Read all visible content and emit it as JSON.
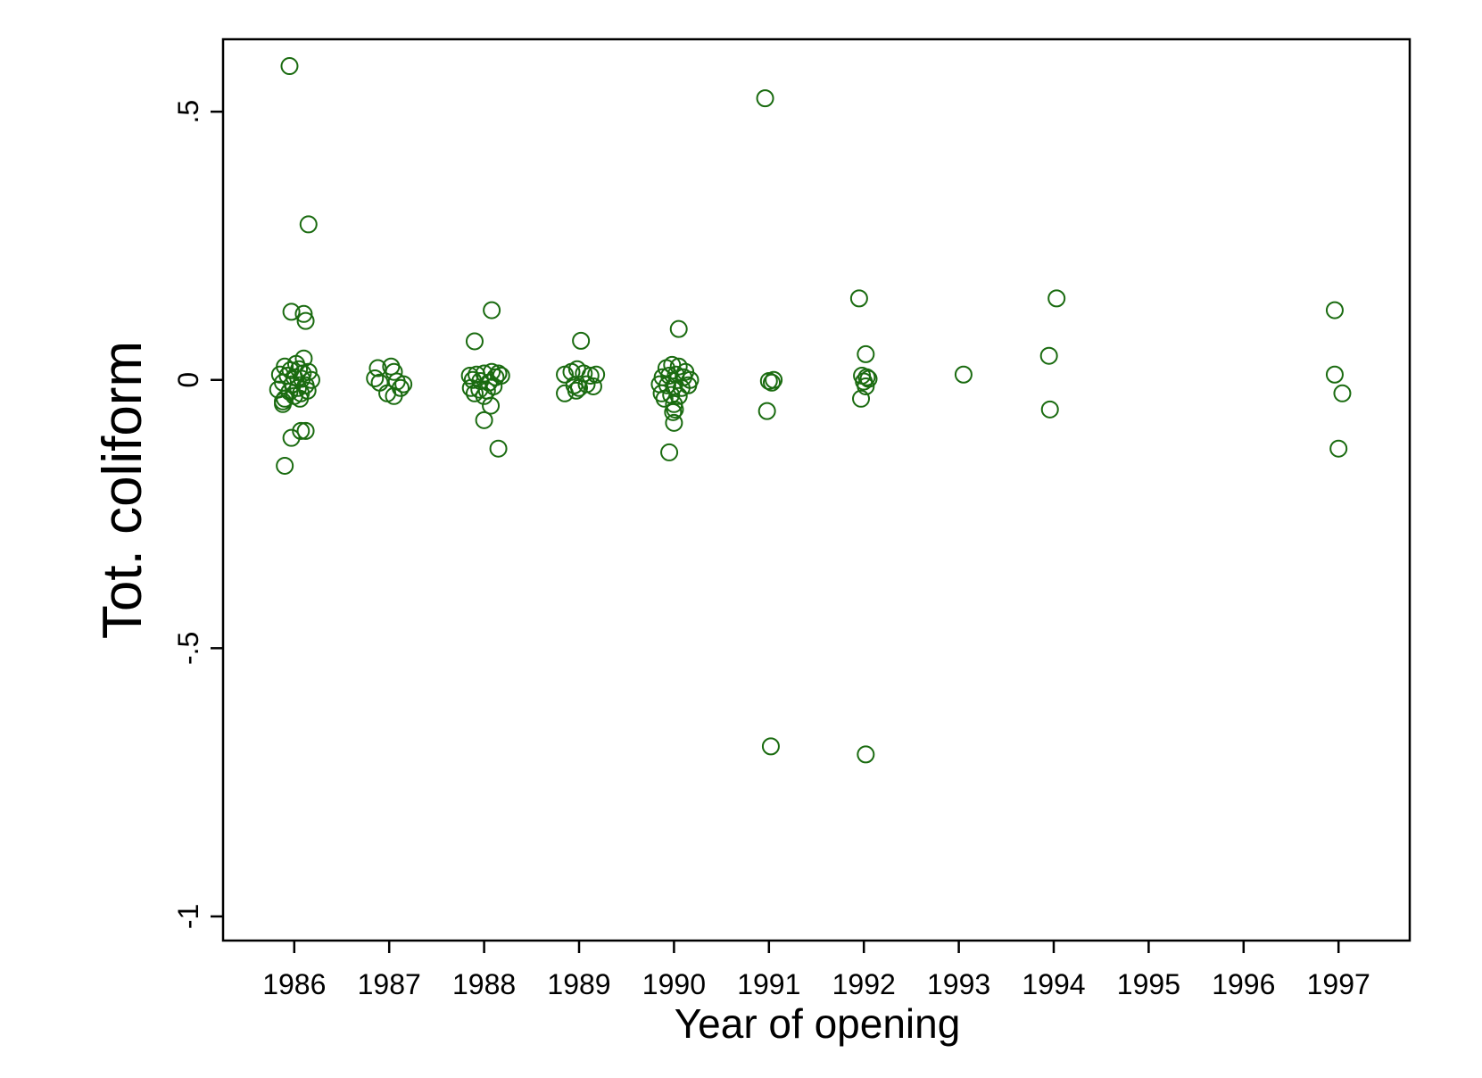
{
  "chart_data": {
    "type": "scatter",
    "title": "",
    "xlabel": "Year of opening",
    "ylabel": "Tot. coliform",
    "xlim": [
      1985.25,
      1997.75
    ],
    "ylim": [
      -1.045,
      0.635
    ],
    "x_ticks": [
      1986,
      1987,
      1988,
      1989,
      1990,
      1991,
      1992,
      1993,
      1994,
      1995,
      1996,
      1997
    ],
    "x_tick_labels": [
      "1986",
      "1987",
      "1988",
      "1989",
      "1990",
      "1991",
      "1992",
      "1993",
      "1994",
      "1995",
      "1996",
      "1997"
    ],
    "y_ticks": [
      -1,
      -0.5,
      0,
      0.5
    ],
    "y_tick_labels": [
      "-1",
      "-.5",
      "0",
      ".5"
    ],
    "grid": false,
    "legend": "none",
    "marker": "hollow-circle",
    "marker_color": "#1a6b10",
    "series": [
      {
        "points": [
          {
            "x": 1985.95,
            "y": 0.585
          },
          {
            "x": 1986.15,
            "y": 0.29
          },
          {
            "x": 1985.97,
            "y": 0.127
          },
          {
            "x": 1986.1,
            "y": 0.123
          },
          {
            "x": 1986.12,
            "y": 0.11
          },
          {
            "x": 1986.1,
            "y": 0.04
          },
          {
            "x": 1986.02,
            "y": 0.03
          },
          {
            "x": 1985.9,
            "y": 0.025
          },
          {
            "x": 1986.05,
            "y": 0.02
          },
          {
            "x": 1986.15,
            "y": 0.015
          },
          {
            "x": 1985.85,
            "y": 0.01
          },
          {
            "x": 1985.93,
            "y": 0.008
          },
          {
            "x": 1986.0,
            "y": 0.005
          },
          {
            "x": 1986.08,
            "y": 0.002
          },
          {
            "x": 1986.18,
            "y": 0.0
          },
          {
            "x": 1985.88,
            "y": -0.005
          },
          {
            "x": 1985.98,
            "y": -0.008
          },
          {
            "x": 1986.12,
            "y": -0.01
          },
          {
            "x": 1986.04,
            "y": -0.015
          },
          {
            "x": 1985.83,
            "y": -0.018
          },
          {
            "x": 1986.14,
            "y": -0.02
          },
          {
            "x": 1985.95,
            "y": -0.022
          },
          {
            "x": 1986.07,
            "y": -0.025
          },
          {
            "x": 1986.0,
            "y": -0.03
          },
          {
            "x": 1985.9,
            "y": -0.035
          },
          {
            "x": 1986.06,
            "y": -0.035
          },
          {
            "x": 1985.88,
            "y": -0.04
          },
          {
            "x": 1985.96,
            "y": 0.018
          },
          {
            "x": 1986.09,
            "y": 0.012
          },
          {
            "x": 1985.88,
            "y": -0.045
          },
          {
            "x": 1986.07,
            "y": -0.095
          },
          {
            "x": 1986.12,
            "y": -0.095
          },
          {
            "x": 1985.97,
            "y": -0.108
          },
          {
            "x": 1985.9,
            "y": -0.16
          },
          {
            "x": 1986.85,
            "y": 0.003
          },
          {
            "x": 1986.88,
            "y": 0.022
          },
          {
            "x": 1987.02,
            "y": 0.025
          },
          {
            "x": 1987.05,
            "y": 0.015
          },
          {
            "x": 1986.9,
            "y": -0.005
          },
          {
            "x": 1987.08,
            "y": -0.003
          },
          {
            "x": 1987.15,
            "y": -0.008
          },
          {
            "x": 1987.12,
            "y": -0.015
          },
          {
            "x": 1986.98,
            "y": -0.025
          },
          {
            "x": 1987.05,
            "y": -0.03
          },
          {
            "x": 1987.9,
            "y": 0.072
          },
          {
            "x": 1988.08,
            "y": 0.13
          },
          {
            "x": 1987.85,
            "y": 0.008
          },
          {
            "x": 1987.92,
            "y": 0.01
          },
          {
            "x": 1988.0,
            "y": 0.012
          },
          {
            "x": 1988.08,
            "y": 0.015
          },
          {
            "x": 1988.15,
            "y": 0.012
          },
          {
            "x": 1987.88,
            "y": 0.0
          },
          {
            "x": 1987.96,
            "y": -0.002
          },
          {
            "x": 1988.05,
            "y": -0.005
          },
          {
            "x": 1988.12,
            "y": 0.005
          },
          {
            "x": 1988.18,
            "y": 0.008
          },
          {
            "x": 1987.86,
            "y": -0.015
          },
          {
            "x": 1987.95,
            "y": -0.018
          },
          {
            "x": 1988.03,
            "y": -0.02
          },
          {
            "x": 1988.1,
            "y": -0.012
          },
          {
            "x": 1987.9,
            "y": -0.025
          },
          {
            "x": 1988.0,
            "y": -0.03
          },
          {
            "x": 1988.07,
            "y": -0.048
          },
          {
            "x": 1988.0,
            "y": -0.075
          },
          {
            "x": 1988.15,
            "y": -0.128
          },
          {
            "x": 1989.02,
            "y": 0.073
          },
          {
            "x": 1988.85,
            "y": 0.01
          },
          {
            "x": 1988.92,
            "y": 0.015
          },
          {
            "x": 1988.98,
            "y": 0.02
          },
          {
            "x": 1989.05,
            "y": 0.012
          },
          {
            "x": 1989.12,
            "y": 0.008
          },
          {
            "x": 1989.18,
            "y": 0.01
          },
          {
            "x": 1988.95,
            "y": -0.01
          },
          {
            "x": 1989.08,
            "y": -0.008
          },
          {
            "x": 1989.15,
            "y": -0.012
          },
          {
            "x": 1989.0,
            "y": -0.015
          },
          {
            "x": 1988.97,
            "y": -0.02
          },
          {
            "x": 1988.85,
            "y": -0.025
          },
          {
            "x": 1990.05,
            "y": 0.095
          },
          {
            "x": 1989.92,
            "y": 0.022
          },
          {
            "x": 1989.98,
            "y": 0.028
          },
          {
            "x": 1990.05,
            "y": 0.025
          },
          {
            "x": 1990.12,
            "y": 0.015
          },
          {
            "x": 1989.88,
            "y": 0.005
          },
          {
            "x": 1989.95,
            "y": 0.008
          },
          {
            "x": 1990.02,
            "y": 0.01
          },
          {
            "x": 1990.1,
            "y": 0.005
          },
          {
            "x": 1990.17,
            "y": 0.0
          },
          {
            "x": 1989.85,
            "y": -0.008
          },
          {
            "x": 1989.93,
            "y": -0.01
          },
          {
            "x": 1990.0,
            "y": -0.012
          },
          {
            "x": 1990.08,
            "y": -0.015
          },
          {
            "x": 1990.15,
            "y": -0.01
          },
          {
            "x": 1989.87,
            "y": -0.025
          },
          {
            "x": 1989.97,
            "y": -0.028
          },
          {
            "x": 1990.05,
            "y": -0.03
          },
          {
            "x": 1989.9,
            "y": -0.035
          },
          {
            "x": 1990.0,
            "y": -0.045
          },
          {
            "x": 1990.01,
            "y": -0.055
          },
          {
            "x": 1989.99,
            "y": -0.06
          },
          {
            "x": 1990.0,
            "y": -0.08
          },
          {
            "x": 1989.95,
            "y": -0.135
          },
          {
            "x": 1990.96,
            "y": 0.525
          },
          {
            "x": 1991.0,
            "y": -0.002
          },
          {
            "x": 1991.05,
            "y": 0.0
          },
          {
            "x": 1991.03,
            "y": -0.005
          },
          {
            "x": 1990.98,
            "y": -0.058
          },
          {
            "x": 1991.02,
            "y": -0.683
          },
          {
            "x": 1991.95,
            "y": 0.152
          },
          {
            "x": 1992.02,
            "y": 0.048
          },
          {
            "x": 1991.98,
            "y": 0.008
          },
          {
            "x": 1992.03,
            "y": 0.005
          },
          {
            "x": 1992.05,
            "y": 0.002
          },
          {
            "x": 1992.0,
            "y": -0.003
          },
          {
            "x": 1992.02,
            "y": -0.012
          },
          {
            "x": 1991.97,
            "y": -0.035
          },
          {
            "x": 1992.02,
            "y": -0.698
          },
          {
            "x": 1993.05,
            "y": 0.01
          },
          {
            "x": 1994.03,
            "y": 0.152
          },
          {
            "x": 1993.95,
            "y": 0.045
          },
          {
            "x": 1993.96,
            "y": -0.055
          },
          {
            "x": 1996.96,
            "y": 0.13
          },
          {
            "x": 1996.96,
            "y": 0.01
          },
          {
            "x": 1997.04,
            "y": -0.025
          },
          {
            "x": 1997.0,
            "y": -0.128
          }
        ]
      }
    ]
  }
}
